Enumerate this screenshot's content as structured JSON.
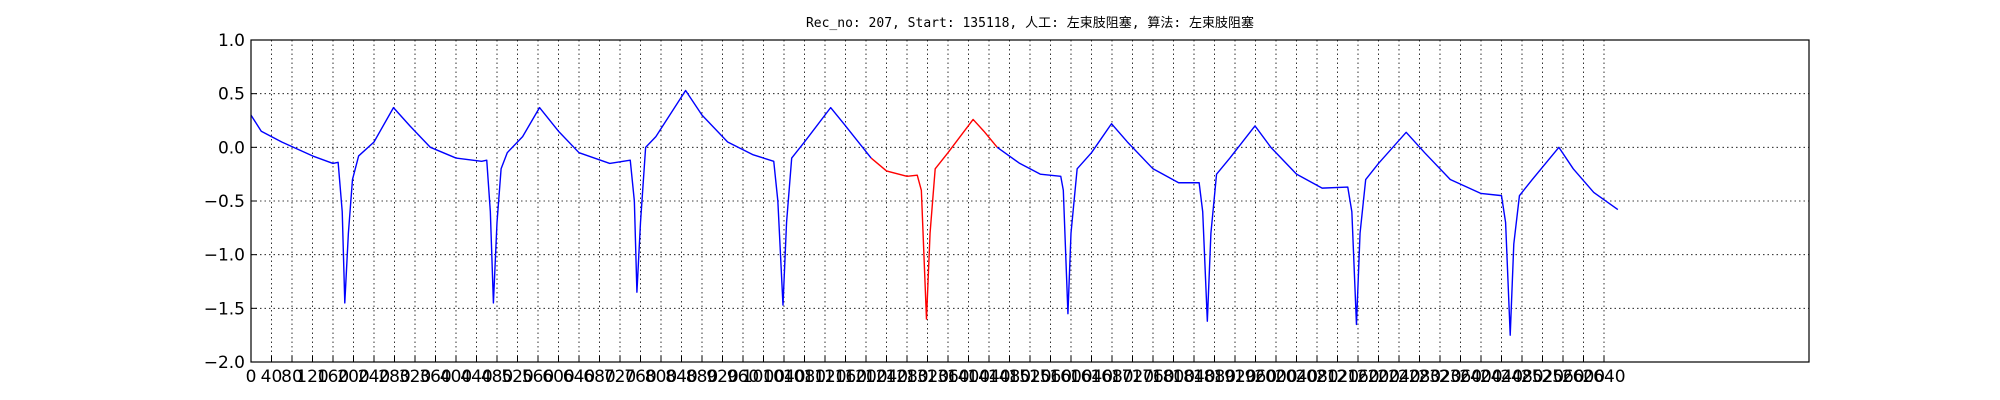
{
  "chart_data": {
    "type": "line",
    "title": "Rec_no: 207, Start: 135118, 人工: 左束肢阻塞, 算法: 左束肢阻塞",
    "xlim": [
      0,
      3040
    ],
    "xticks": [
      0,
      40,
      80,
      120,
      160,
      200,
      240,
      280,
      320,
      360,
      400,
      440,
      480,
      520,
      560,
      600,
      640,
      680,
      720,
      760,
      800,
      840,
      880,
      920,
      960,
      1000,
      1040,
      1080,
      1120,
      1160,
      1200,
      1240,
      1280,
      1320,
      1360,
      1400,
      1440,
      1480,
      1520,
      1560,
      1600,
      1640,
      1680,
      1720,
      1760,
      1800,
      1840,
      1880,
      1920,
      1960,
      2000,
      2040,
      2080,
      2120,
      2160,
      2200,
      2240,
      2280,
      2320,
      2360,
      2400,
      2440,
      2480,
      2520,
      2560,
      2600,
      2640
    ],
    "ylim": [
      -2,
      1
    ],
    "yticks": [
      {
        "value": -2,
        "label": "−2.0"
      },
      {
        "value": -1.5,
        "label": "−1.5"
      },
      {
        "value": -1,
        "label": "−1.0"
      },
      {
        "value": -0.5,
        "label": "−0.5"
      },
      {
        "value": 0,
        "label": "0.0"
      },
      {
        "value": 0.5,
        "label": "0.5"
      },
      {
        "value": 1,
        "label": "1.0"
      }
    ],
    "grid": true,
    "series": [
      {
        "color": "#0000ff",
        "x": [
          0,
          20,
          60,
          120,
          160,
          170,
          178,
          183,
          190,
          198,
          210,
          240,
          278,
          310,
          350,
          400,
          450,
          460,
          467,
          473,
          480,
          488,
          500,
          530,
          563,
          600,
          640,
          700,
          740,
          748,
          753,
          760,
          770,
          790,
          848,
          880,
          930,
          980,
          1020,
          1028,
          1038,
          1045,
          1055,
          1080,
          1131,
          1160,
          1210
        ],
        "values": [
          0.3,
          0.15,
          0.05,
          -0.08,
          -0.15,
          -0.14,
          -0.6,
          -1.45,
          -0.8,
          -0.3,
          -0.08,
          0.05,
          0.37,
          0.2,
          0.0,
          -0.1,
          -0.13,
          -0.12,
          -0.6,
          -1.45,
          -0.7,
          -0.2,
          -0.05,
          0.1,
          0.37,
          0.15,
          -0.05,
          -0.15,
          -0.12,
          -0.5,
          -1.35,
          -0.7,
          0.0,
          0.1,
          0.53,
          0.3,
          0.05,
          -0.07,
          -0.13,
          -0.5,
          -1.47,
          -0.7,
          -0.1,
          0.05,
          0.37,
          0.2,
          -0.1
        ]
      },
      {
        "color": "#ff0000",
        "x": [
          1210,
          1240,
          1280,
          1300,
          1308,
          1318,
          1325,
          1335,
          1360,
          1409,
          1430,
          1456
        ],
        "values": [
          -0.1,
          -0.22,
          -0.27,
          -0.26,
          -0.4,
          -1.6,
          -0.8,
          -0.2,
          -0.05,
          0.26,
          0.15,
          0.0
        ]
      },
      {
        "color": "#0000ff",
        "x": [
          1456,
          1500,
          1540,
          1580,
          1585,
          1594,
          1600,
          1612,
          1640,
          1679,
          1710,
          1760,
          1810,
          1850,
          1857,
          1866,
          1873,
          1884,
          1910,
          1959,
          1990,
          2040,
          2090,
          2140,
          2148,
          2157,
          2164,
          2175,
          2200,
          2254,
          2290,
          2340,
          2400,
          2440,
          2448,
          2457,
          2464,
          2475,
          2500,
          2552,
          2580,
          2620,
          2667
        ],
        "values": [
          0.0,
          -0.15,
          -0.25,
          -0.27,
          -0.4,
          -1.55,
          -0.8,
          -0.2,
          -0.05,
          0.22,
          0.05,
          -0.2,
          -0.33,
          -0.33,
          -0.6,
          -1.62,
          -0.8,
          -0.25,
          -0.1,
          0.2,
          0.0,
          -0.25,
          -0.38,
          -0.37,
          -0.6,
          -1.65,
          -0.8,
          -0.3,
          -0.15,
          0.14,
          -0.05,
          -0.3,
          -0.43,
          -0.45,
          -0.7,
          -1.75,
          -0.9,
          -0.45,
          -0.3,
          0.0,
          -0.2,
          -0.42,
          -0.58
        ]
      }
    ]
  }
}
